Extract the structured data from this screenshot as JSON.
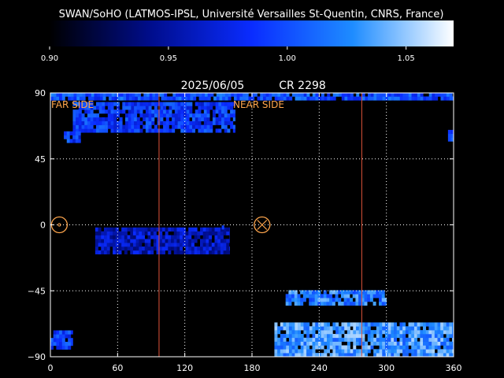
{
  "header": {
    "title": "SWAN/SoHO (LATMOS-IPSL, Université Versailles St-Quentin, CNRS, France)"
  },
  "colorbar": {
    "ticks": [
      "0.90",
      "0.95",
      "1.00",
      "1.05"
    ],
    "tick_values": [
      0.9,
      0.95,
      1.0,
      1.05
    ],
    "range": [
      0.9,
      1.07
    ],
    "colors": [
      "#000000",
      "#000d8c",
      "#0a2cff",
      "#1e8cff",
      "#ffffff"
    ]
  },
  "map": {
    "date": "2025/06/05",
    "rotation": "CR 2298",
    "far_side_label": "FAR SIDE",
    "near_side_label": "NEAR SIDE",
    "far_side_marker_lon": 8,
    "near_side_marker_lon": 189,
    "marker_lat": 0,
    "boundary_lons": [
      97,
      278
    ],
    "colors": {
      "marker": "#ffa64d",
      "boundary": "#e0543a",
      "grid": "#ffffff",
      "axes": "#ffffff"
    }
  },
  "chart_data": {
    "type": "heatmap",
    "title": "2025/06/05    CR 2298",
    "xlim": [
      0,
      360
    ],
    "ylim": [
      -90,
      90
    ],
    "xticks": [
      0,
      60,
      120,
      180,
      240,
      300,
      360
    ],
    "yticks": [
      90,
      45,
      0,
      -45,
      -90
    ],
    "xtick_labels": [
      "0",
      "60",
      "120",
      "180",
      "240",
      "300",
      "360"
    ],
    "ytick_labels": [
      "90",
      "45",
      "0",
      "−45",
      "−90"
    ],
    "grid": true,
    "colorscale_range": [
      0.9,
      1.07
    ],
    "regions": [
      {
        "lon_range": [
          0,
          360
        ],
        "lat_range": [
          85,
          90
        ],
        "typical_value": 1.0
      },
      {
        "lon_range": [
          20,
          165
        ],
        "lat_range": [
          63,
          83
        ],
        "typical_value": 0.99
      },
      {
        "lon_range": [
          12,
          27
        ],
        "lat_range": [
          56,
          62
        ],
        "typical_value": 0.99
      },
      {
        "lon_range": [
          355,
          360
        ],
        "lat_range": [
          57,
          63
        ],
        "typical_value": 0.99
      },
      {
        "lon_range": [
          40,
          160
        ],
        "lat_range": [
          -20,
          -3
        ],
        "typical_value": 0.96
      },
      {
        "lon_range": [
          153,
          155
        ],
        "lat_range": [
          -3,
          -1
        ],
        "typical_value": 0.98
      },
      {
        "lon_range": [
          210,
          300
        ],
        "lat_range": [
          -55,
          -46
        ],
        "typical_value": 1.02
      },
      {
        "lon_range": [
          200,
          360
        ],
        "lat_range": [
          -90,
          -69
        ],
        "typical_value": 1.03
      },
      {
        "lon_range": [
          0,
          20
        ],
        "lat_range": [
          -85,
          -73
        ],
        "typical_value": 0.99
      }
    ]
  }
}
